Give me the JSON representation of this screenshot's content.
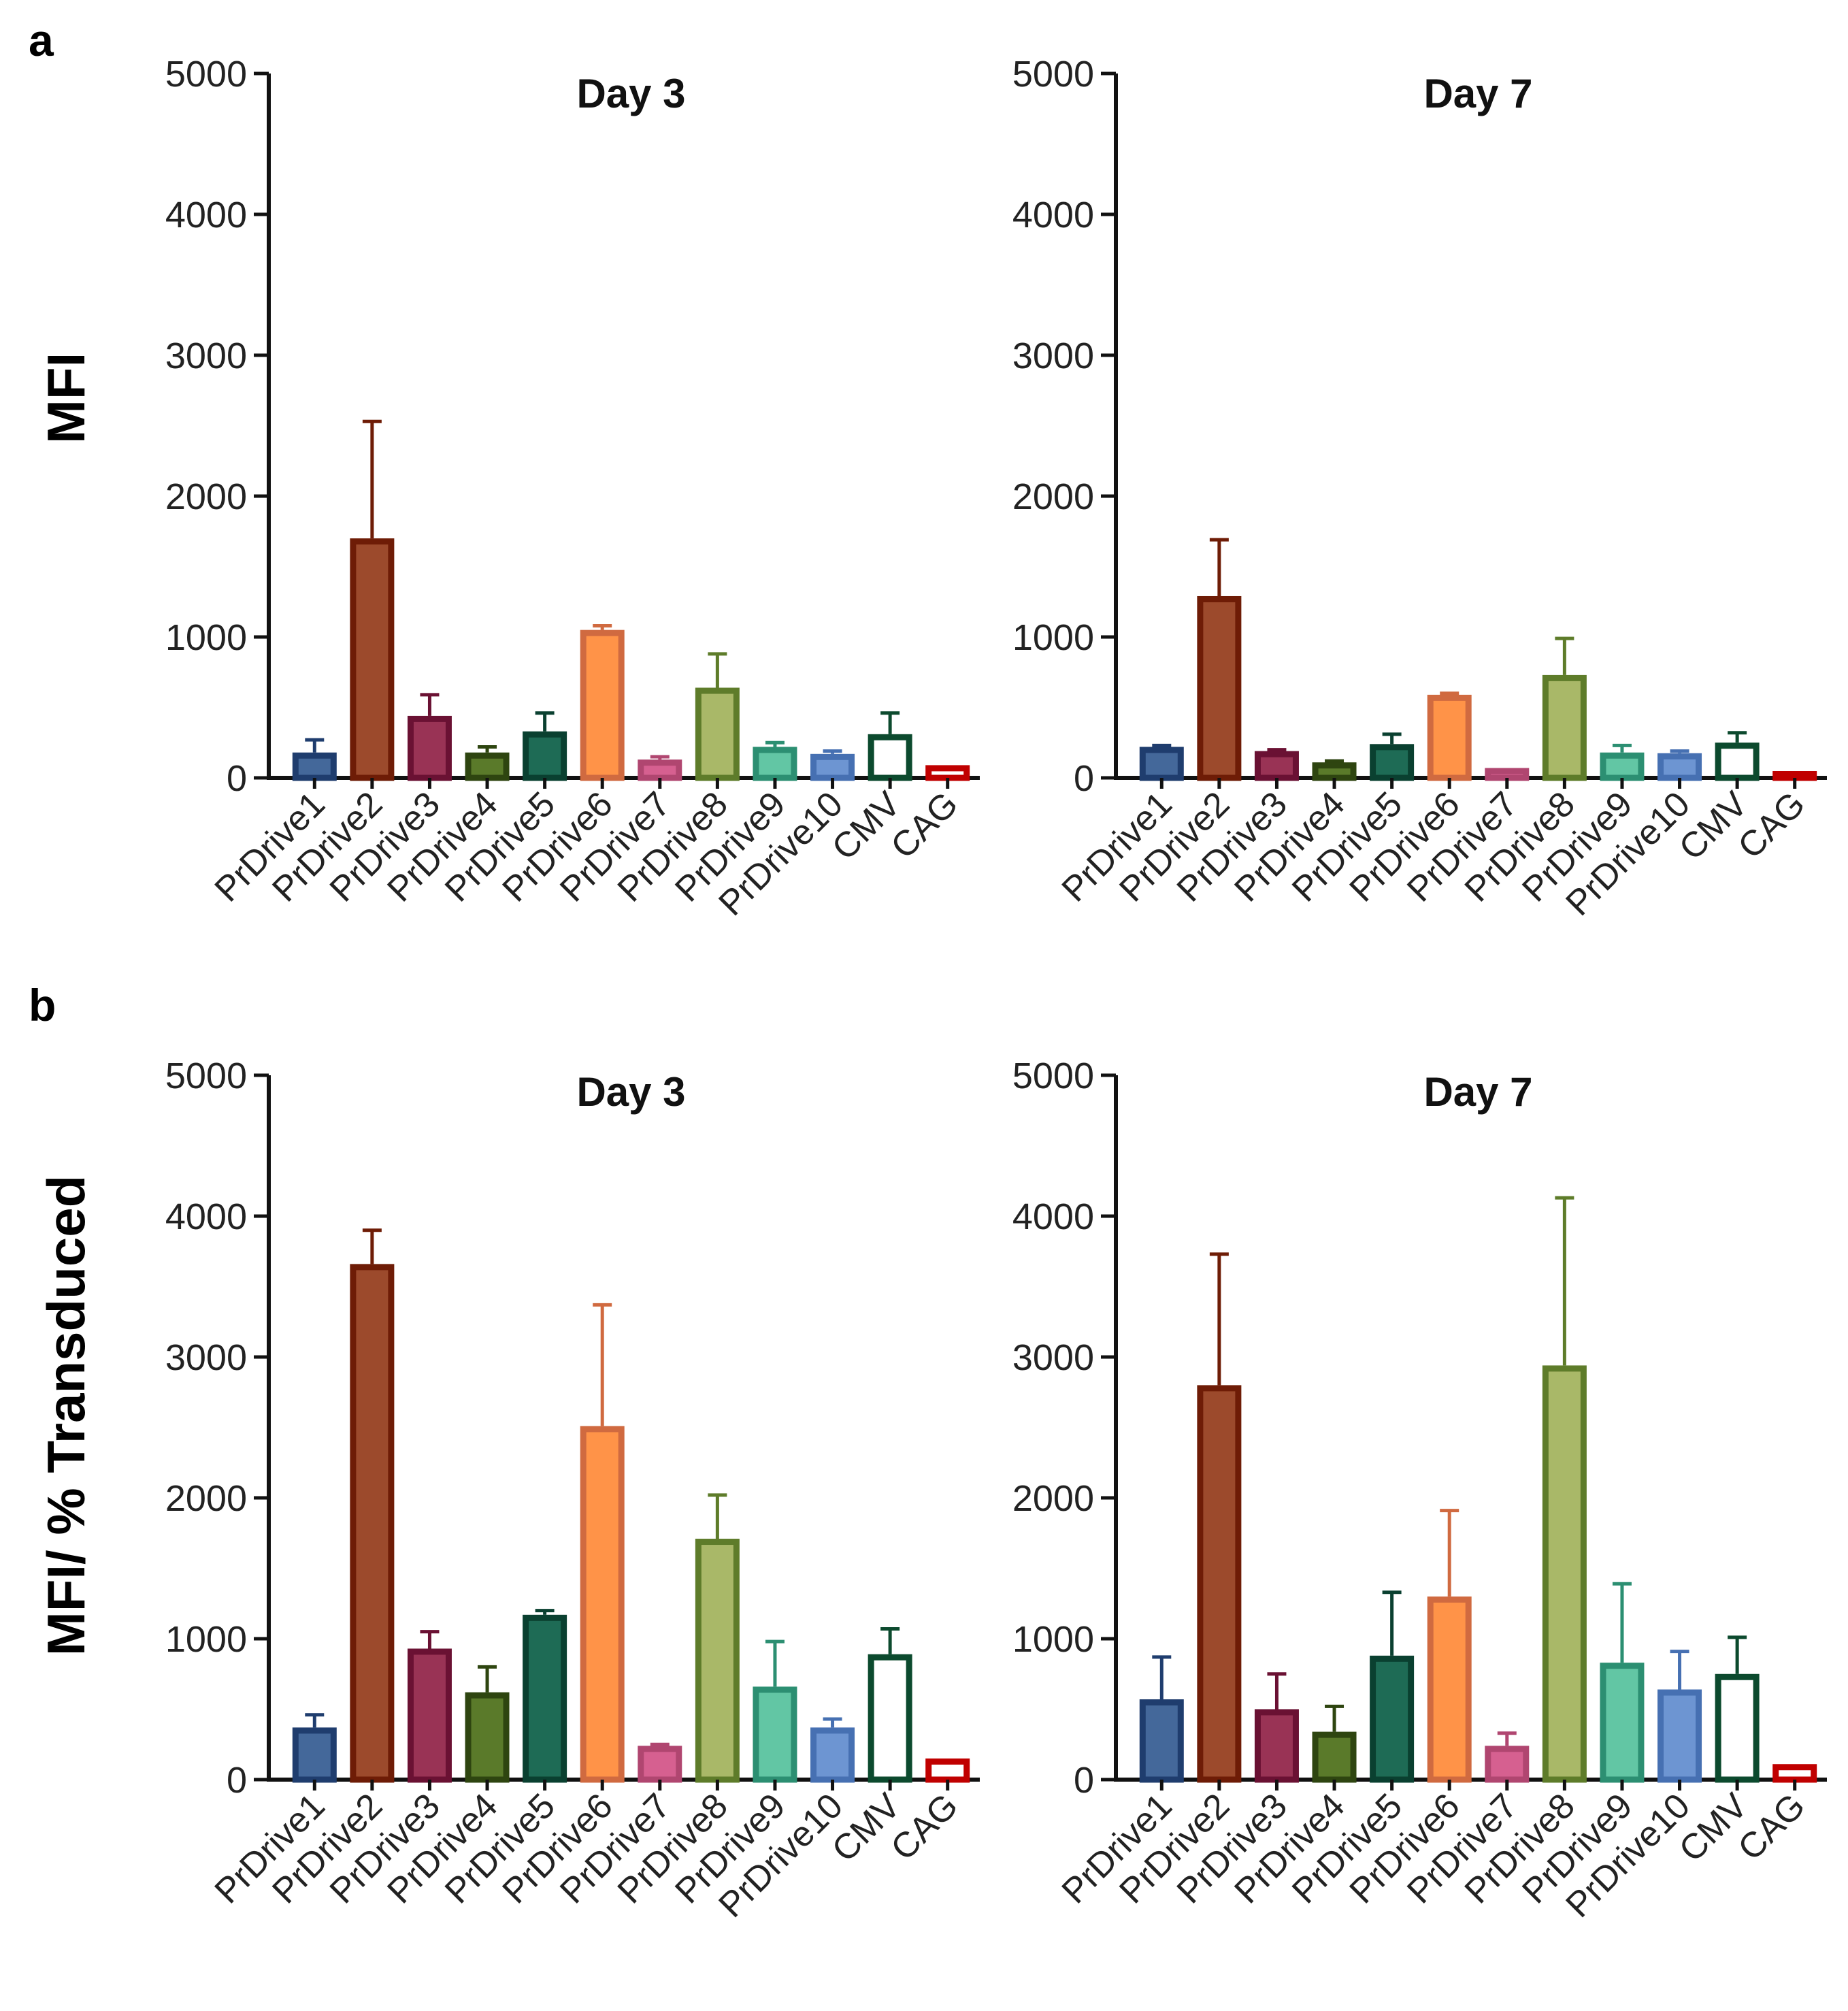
{
  "panel_labels": [
    "a",
    "b"
  ],
  "row_ylabels": [
    "MFI",
    "MFI/ % Transduced"
  ],
  "colors": {
    "PrDrive1": {
      "fill": "#44689a",
      "edge": "#1f3d6e"
    },
    "PrDrive2": {
      "fill": "#9c4a2c",
      "edge": "#6e1c06"
    },
    "PrDrive3": {
      "fill": "#993355",
      "edge": "#6a1133"
    },
    "PrDrive4": {
      "fill": "#5a7a2a",
      "edge": "#2e4510"
    },
    "PrDrive5": {
      "fill": "#1e6b55",
      "edge": "#0a4030"
    },
    "PrDrive6": {
      "fill": "#ff9348",
      "edge": "#d06a40"
    },
    "PrDrive7": {
      "fill": "#d66090",
      "edge": "#b04670"
    },
    "PrDrive8": {
      "fill": "#a9b868",
      "edge": "#5e7c2a"
    },
    "PrDrive9": {
      "fill": "#62c6a4",
      "edge": "#2c8f72"
    },
    "PrDrive10": {
      "fill": "#6d95d2",
      "edge": "#4670b2"
    },
    "CMV": {
      "fill": "#ffffff",
      "edge": "#0c4a2e"
    },
    "CAG": {
      "fill": "#ffffff",
      "edge": "#c00000"
    }
  },
  "chart_data": [
    {
      "type": "bar",
      "panel": "a",
      "title": "Day 3",
      "ylabel": "MFI",
      "ylim": [
        0,
        5000
      ],
      "yticks": [
        0,
        1000,
        2000,
        3000,
        4000,
        5000
      ],
      "categories": [
        "PrDrive1",
        "PrDrive2",
        "PrDrive3",
        "PrDrive4",
        "PrDrive5",
        "PrDrive6",
        "PrDrive7",
        "PrDrive8",
        "PrDrive9",
        "PrDrive10",
        "CMV",
        "CAG"
      ],
      "values": [
        180,
        1700,
        440,
        180,
        330,
        1050,
        130,
        640,
        220,
        170,
        310,
        90
      ],
      "error": [
        90,
        830,
        150,
        40,
        130,
        30,
        20,
        240,
        30,
        20,
        150,
        0
      ]
    },
    {
      "type": "bar",
      "panel": "a",
      "title": "Day 7",
      "ylabel": "MFI",
      "ylim": [
        0,
        5000
      ],
      "yticks": [
        0,
        1000,
        2000,
        3000,
        4000,
        5000
      ],
      "categories": [
        "PrDrive1",
        "PrDrive2",
        "PrDrive3",
        "PrDrive4",
        "PrDrive5",
        "PrDrive6",
        "PrDrive7",
        "PrDrive8",
        "PrDrive9",
        "PrDrive10",
        "CMV",
        "CAG"
      ],
      "values": [
        220,
        1290,
        190,
        110,
        240,
        590,
        70,
        730,
        180,
        175,
        250,
        40
      ],
      "error": [
        10,
        400,
        10,
        10,
        70,
        10,
        0,
        260,
        50,
        15,
        70,
        0
      ]
    },
    {
      "type": "bar",
      "panel": "b",
      "title": "Day 3",
      "ylabel": "MFI/ % Transduced",
      "ylim": [
        0,
        5000
      ],
      "yticks": [
        0,
        1000,
        2000,
        3000,
        4000,
        5000
      ],
      "categories": [
        "PrDrive1",
        "PrDrive2",
        "PrDrive3",
        "PrDrive4",
        "PrDrive5",
        "PrDrive6",
        "PrDrive7",
        "PrDrive8",
        "PrDrive9",
        "PrDrive10",
        "CMV",
        "CAG"
      ],
      "values": [
        370,
        3660,
        930,
        620,
        1170,
        2510,
        240,
        1710,
        660,
        370,
        890,
        150
      ],
      "error": [
        90,
        240,
        120,
        180,
        30,
        860,
        10,
        310,
        320,
        60,
        180,
        0
      ]
    },
    {
      "type": "bar",
      "panel": "b",
      "title": "Day 7",
      "ylabel": "MFI/ % Transduced",
      "ylim": [
        0,
        5000
      ],
      "yticks": [
        0,
        1000,
        2000,
        3000,
        4000,
        5000
      ],
      "categories": [
        "PrDrive1",
        "PrDrive2",
        "PrDrive3",
        "PrDrive4",
        "PrDrive5",
        "PrDrive6",
        "PrDrive7",
        "PrDrive8",
        "PrDrive9",
        "PrDrive10",
        "CMV",
        "CAG"
      ],
      "values": [
        570,
        2800,
        500,
        340,
        880,
        1300,
        240,
        2940,
        830,
        640,
        750,
        110
      ],
      "error": [
        300,
        930,
        250,
        180,
        450,
        610,
        90,
        1190,
        560,
        270,
        260,
        0
      ]
    }
  ]
}
